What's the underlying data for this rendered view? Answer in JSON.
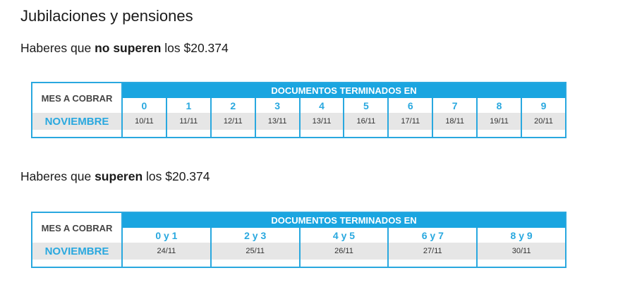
{
  "page": {
    "title": "Jubilaciones y pensiones"
  },
  "section1": {
    "subtitle_pre": "Haberes que ",
    "subtitle_bold": "no superen",
    "subtitle_post": " los $20.374",
    "mes_label": "MES A COBRAR",
    "header": "DOCUMENTOS TERMINADOS EN",
    "month": "NOVIEMBRE",
    "columns": [
      "0",
      "1",
      "2",
      "3",
      "4",
      "5",
      "6",
      "7",
      "8",
      "9"
    ],
    "dates": [
      "10/11",
      "11/11",
      "12/11",
      "13/11",
      "13/11",
      "16/11",
      "17/11",
      "18/11",
      "19/11",
      "20/11"
    ]
  },
  "section2": {
    "subtitle_pre": "Haberes que ",
    "subtitle_bold": "superen",
    "subtitle_post": " los $20.374",
    "mes_label": "MES A COBRAR",
    "header": "DOCUMENTOS TERMINADOS EN",
    "month": "NOVIEMBRE",
    "columns": [
      "0 y 1",
      "2 y 3",
      "4 y 5",
      "6 y 7",
      "8 y 9"
    ],
    "dates": [
      "24/11",
      "25/11",
      "26/11",
      "27/11",
      "30/11"
    ]
  },
  "colors": {
    "accent": "#29a8df",
    "header_bg": "#1aa5e0",
    "row_bg": "#e6e6e6"
  }
}
